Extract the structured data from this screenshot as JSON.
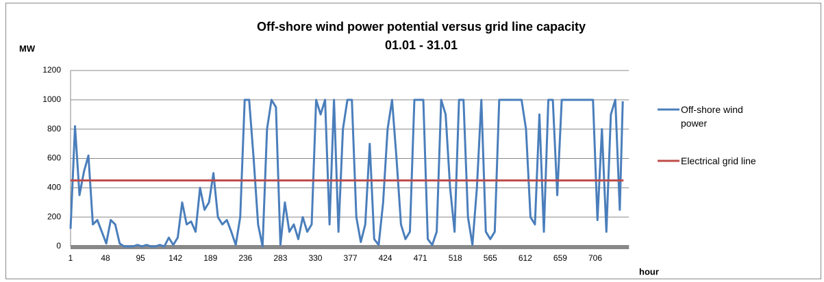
{
  "chart_data": {
    "type": "line",
    "title": "Off-shore wind power potential versus grid line capacity",
    "subtitle": "01.01 - 31.01",
    "y_label": "MW",
    "x_label": "hour",
    "xlim": [
      1,
      744
    ],
    "xticks": [
      1,
      48,
      95,
      142,
      189,
      236,
      283,
      330,
      377,
      424,
      471,
      518,
      565,
      612,
      659,
      706
    ],
    "ylim": [
      0,
      1200
    ],
    "yticks": [
      0,
      200,
      400,
      600,
      800,
      1000,
      1200
    ],
    "grid": true,
    "legend": "right",
    "series": [
      {
        "name": "Off-shore wind power",
        "color": "#4a7ebb",
        "x": [
          1,
          7,
          13,
          19,
          25,
          31,
          37,
          43,
          49,
          55,
          61,
          67,
          73,
          79,
          85,
          91,
          97,
          103,
          109,
          115,
          121,
          127,
          133,
          139,
          145,
          151,
          157,
          163,
          169,
          175,
          181,
          187,
          193,
          199,
          205,
          211,
          217,
          223,
          229,
          235,
          241,
          247,
          253,
          259,
          265,
          271,
          277,
          283,
          289,
          295,
          301,
          307,
          313,
          319,
          325,
          331,
          337,
          343,
          349,
          355,
          361,
          367,
          373,
          379,
          385,
          391,
          397,
          403,
          409,
          415,
          421,
          427,
          433,
          439,
          445,
          451,
          457,
          463,
          469,
          475,
          481,
          487,
          493,
          499,
          505,
          511,
          517,
          523,
          529,
          535,
          541,
          547,
          553,
          559,
          565,
          571,
          577,
          583,
          589,
          595,
          601,
          607,
          613,
          619,
          625,
          631,
          637,
          643,
          649,
          655,
          661,
          667,
          673,
          679,
          685,
          691,
          697,
          703,
          709,
          715,
          721,
          727,
          733,
          739,
          743
        ],
        "values": [
          120,
          820,
          350,
          510,
          620,
          150,
          180,
          100,
          20,
          180,
          150,
          20,
          0,
          0,
          0,
          10,
          0,
          10,
          0,
          0,
          10,
          0,
          60,
          10,
          60,
          300,
          150,
          170,
          100,
          400,
          250,
          300,
          500,
          200,
          150,
          180,
          100,
          10,
          200,
          1000,
          1000,
          600,
          150,
          0,
          800,
          1000,
          950,
          10,
          300,
          100,
          150,
          50,
          200,
          100,
          150,
          1000,
          900,
          1000,
          150,
          1000,
          100,
          800,
          1000,
          1000,
          200,
          30,
          150,
          700,
          50,
          10,
          300,
          800,
          1000,
          600,
          150,
          50,
          100,
          1000,
          1000,
          1000,
          50,
          10,
          100,
          1000,
          900,
          400,
          100,
          1000,
          1000,
          200,
          10,
          400,
          1000,
          100,
          50,
          100,
          1000,
          1000,
          1000,
          1000,
          1000,
          1000,
          800,
          200,
          150,
          900,
          100,
          1000,
          1000,
          350,
          1000,
          1000,
          1000,
          1000,
          1000,
          1000,
          1000,
          1000,
          180,
          800,
          100,
          900,
          1000,
          250,
          990
        ]
      },
      {
        "name": "Electrical grid line",
        "color": "#be4b48",
        "x": [
          1,
          744
        ],
        "values": [
          450,
          450
        ]
      }
    ]
  }
}
